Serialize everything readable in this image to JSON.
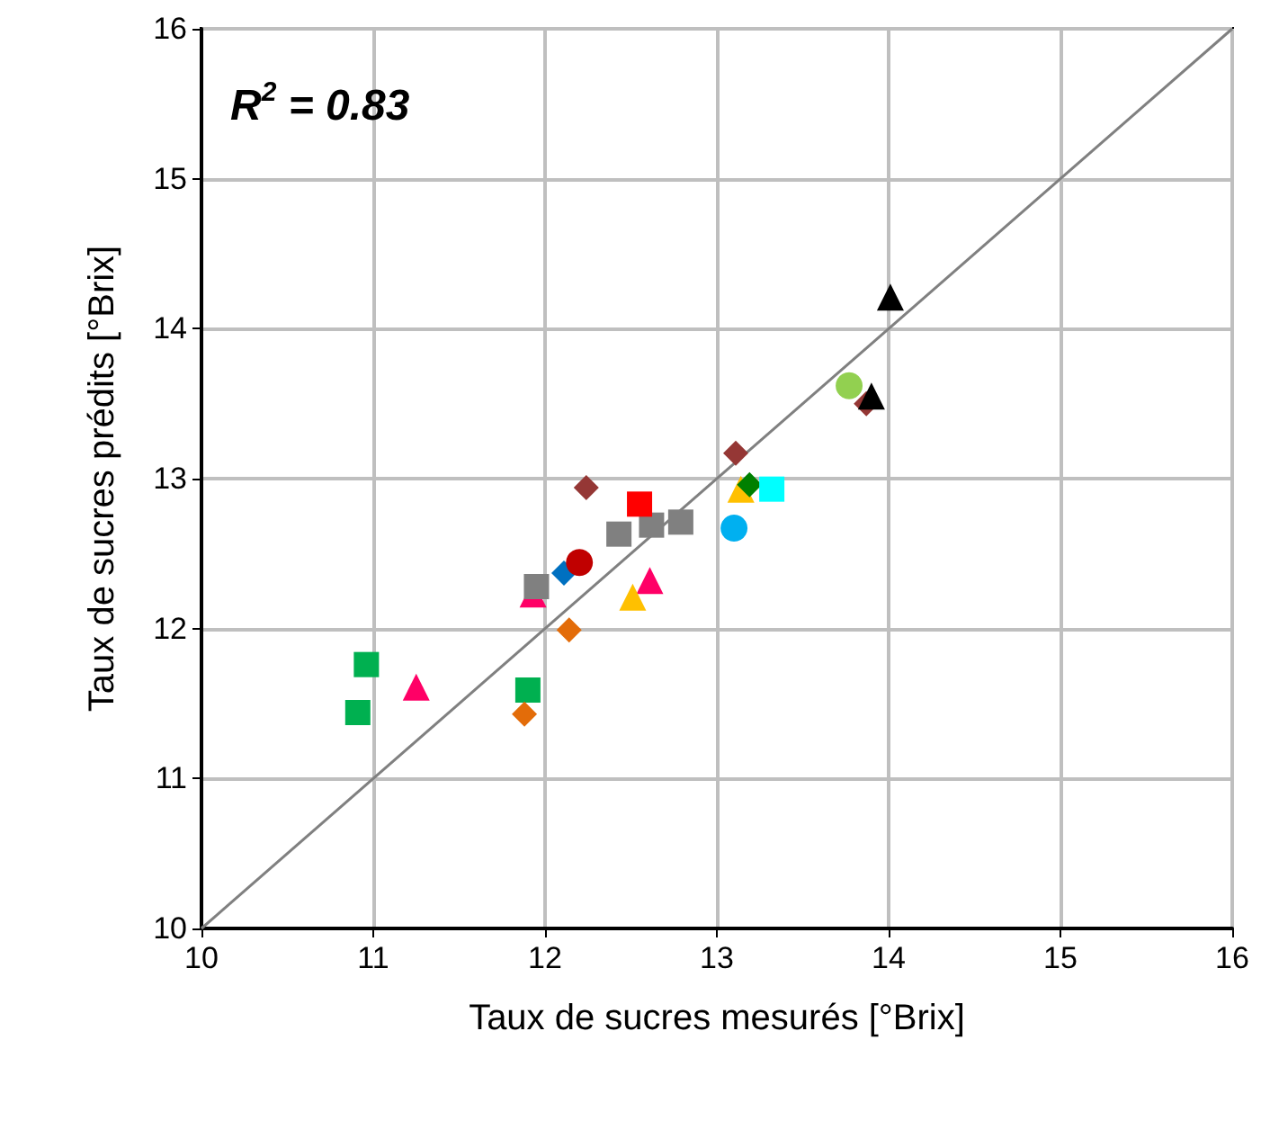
{
  "chart_data": {
    "type": "scatter",
    "xlabel": "Taux de sucres mesurés [°Brix]",
    "ylabel": "Taux de sucres prédits [°Brix]",
    "annotations": [
      "R$^{2}$ = 0.83"
    ],
    "xlim": [
      10,
      16
    ],
    "ylim": [
      10,
      16
    ],
    "xticks": [
      10,
      11,
      12,
      13,
      14,
      15,
      16
    ],
    "yticks": [
      10,
      11,
      12,
      13,
      14,
      15,
      16
    ],
    "grid": true,
    "series": [
      {
        "type": "line",
        "color": "#808080",
        "marker": "none",
        "x": [
          10,
          16
        ],
        "values": [
          10,
          16
        ]
      },
      {
        "color": "#00b050",
        "marker": "square",
        "x": [
          10.91,
          10.96,
          11.9
        ],
        "values": [
          11.44,
          11.76,
          11.59
        ]
      },
      {
        "color": "#ff0066",
        "marker": "triangle",
        "x": [
          11.25,
          11.93,
          12.61
        ],
        "values": [
          11.61,
          12.23,
          12.32
        ]
      },
      {
        "color": "#e36c09",
        "marker": "diamond",
        "x": [
          11.88,
          12.14
        ],
        "values": [
          11.43,
          11.99
        ]
      },
      {
        "color": "#808080",
        "marker": "square",
        "x": [
          11.95,
          12.43,
          12.62,
          12.79
        ],
        "values": [
          12.28,
          12.63,
          12.69,
          12.71
        ]
      },
      {
        "color": "#0070c0",
        "marker": "diamond",
        "x": [
          12.11
        ],
        "values": [
          12.37
        ]
      },
      {
        "color": "#c00000",
        "marker": "circle",
        "x": [
          12.2
        ],
        "values": [
          12.44
        ]
      },
      {
        "color": "#953735",
        "marker": "diamond",
        "x": [
          12.24,
          13.11,
          13.87
        ],
        "values": [
          12.94,
          13.17,
          13.5
        ]
      },
      {
        "color": "#ff0000",
        "marker": "square",
        "x": [
          12.55
        ],
        "values": [
          12.83
        ]
      },
      {
        "color": "#ffc000",
        "marker": "triangle",
        "x": [
          12.51,
          13.14
        ],
        "values": [
          12.21,
          12.93
        ]
      },
      {
        "color": "#008000",
        "marker": "diamond",
        "x": [
          13.19
        ],
        "values": [
          12.96
        ]
      },
      {
        "color": "#00ffff",
        "marker": "square",
        "x": [
          13.32
        ],
        "values": [
          12.93
        ]
      },
      {
        "color": "#00b0f0",
        "marker": "circle",
        "x": [
          13.1
        ],
        "values": [
          12.67
        ]
      },
      {
        "color": "#92d050",
        "marker": "circle",
        "x": [
          13.77
        ],
        "values": [
          13.62
        ]
      },
      {
        "color": "#000000",
        "marker": "triangle",
        "x": [
          14.01,
          13.9
        ],
        "values": [
          14.21,
          13.55
        ]
      }
    ]
  }
}
